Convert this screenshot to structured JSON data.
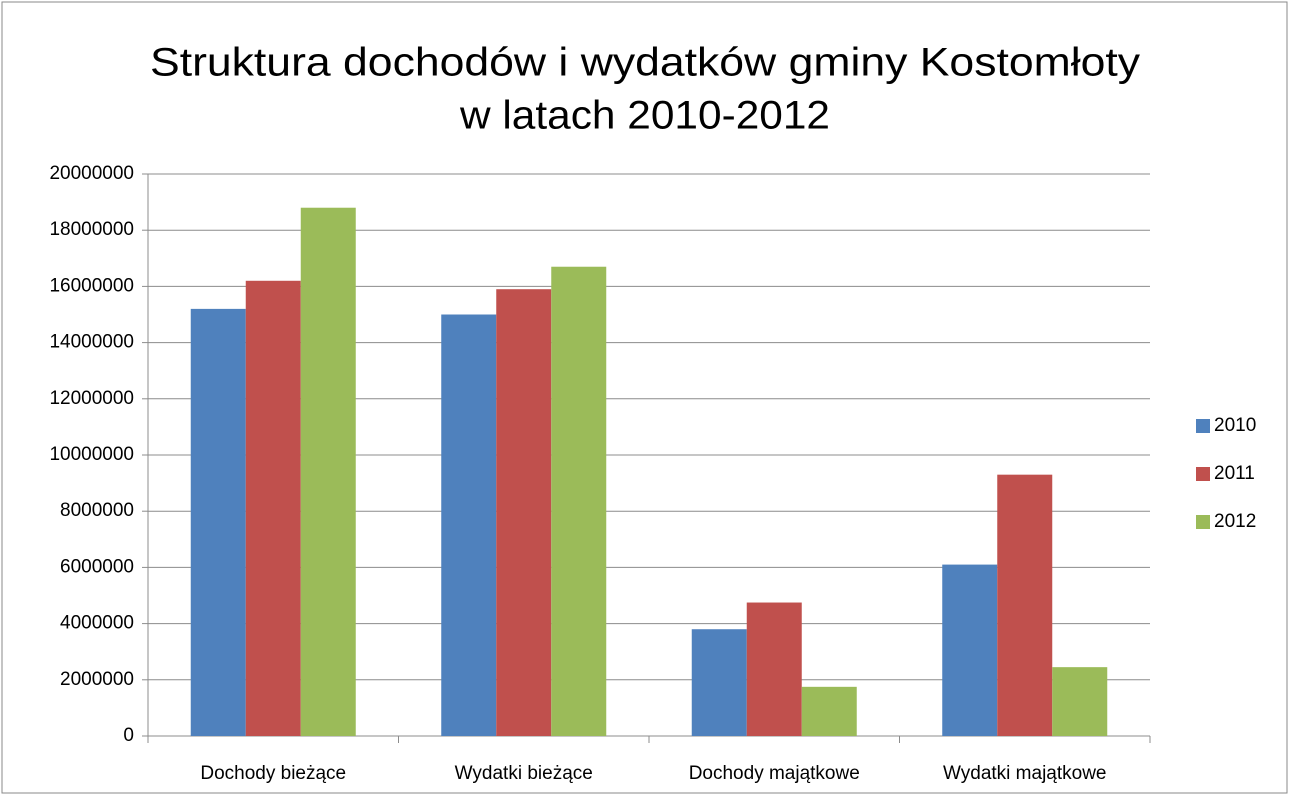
{
  "chart_data": {
    "type": "bar",
    "title": [
      "Struktura dochodów  i wydatków gminy Kostomłoty",
      "w latach 2010-2012"
    ],
    "categories": [
      "Dochody bieżące",
      "Wydatki bieżące",
      "Dochody majątkowe",
      "Wydatki majątkowe"
    ],
    "series": [
      {
        "name": "2010",
        "color": "#4f81bd",
        "values": [
          15200000,
          15000000,
          3800000,
          6100000
        ]
      },
      {
        "name": "2011",
        "color": "#c0504d",
        "values": [
          16200000,
          15900000,
          4750000,
          9300000
        ]
      },
      {
        "name": "2012",
        "color": "#9bbb59",
        "values": [
          18800000,
          16700000,
          1750000,
          2450000
        ]
      }
    ],
    "ylim": [
      0,
      20000000
    ],
    "yticks": [
      0,
      2000000,
      4000000,
      6000000,
      8000000,
      10000000,
      12000000,
      14000000,
      16000000,
      18000000,
      20000000
    ],
    "grid": true,
    "legend": "right"
  }
}
